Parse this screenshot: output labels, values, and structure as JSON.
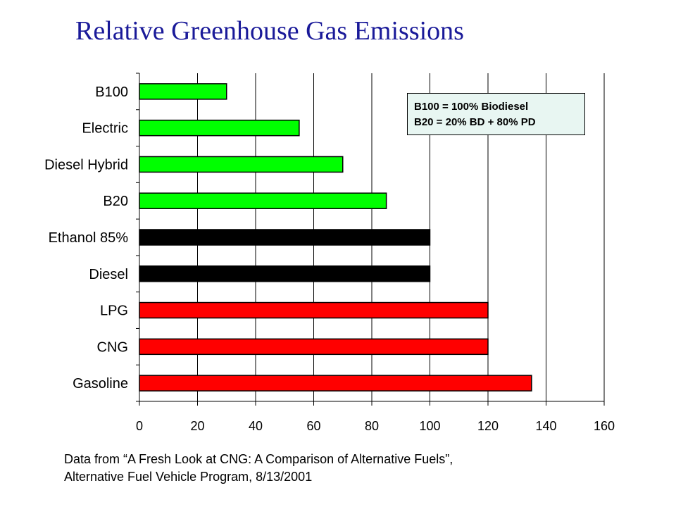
{
  "title": "Relative Greenhouse Gas Emissions",
  "note": {
    "line1": "B100 = 100% Biodiesel",
    "line2": "B20 = 20% BD + 80% PD"
  },
  "source": {
    "line1": "Data from “A Fresh Look at CNG: A Comparison of Alternative Fuels”,",
    "line2": "Alternative Fuel Vehicle Program, 8/13/2001"
  },
  "chart_data": {
    "type": "bar",
    "orientation": "horizontal",
    "categories": [
      "B100",
      "Electric",
      "Diesel Hybrid",
      "B20",
      "Ethanol 85%",
      "Diesel",
      "LPG",
      "CNG",
      "Gasoline"
    ],
    "values": [
      30,
      55,
      70,
      85,
      100,
      100,
      120,
      120,
      135
    ],
    "bar_colors": [
      "#00ff00",
      "#00ff00",
      "#00ff00",
      "#00ff00",
      "#000000",
      "#000000",
      "#ff0000",
      "#ff0000",
      "#ff0000"
    ],
    "xlim": [
      0,
      160
    ],
    "xticks": [
      0,
      20,
      40,
      60,
      80,
      100,
      120,
      140,
      160
    ],
    "grid": "vertical",
    "xlabel": "",
    "ylabel": ""
  }
}
